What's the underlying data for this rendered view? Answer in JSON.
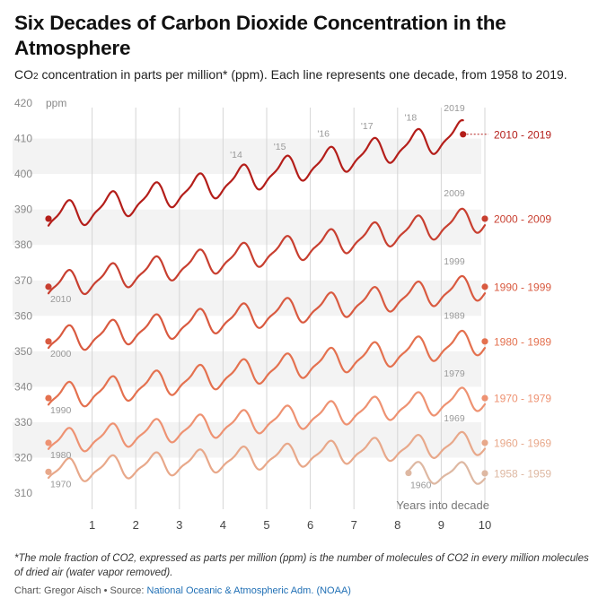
{
  "header": {
    "title": "Six Decades of Carbon Dioxide Concentration in the Atmosphere",
    "subtitle_pre": "CO",
    "subtitle_sub": "2",
    "subtitle_post": " concentration in parts per million* (ppm). Each line represents one decade, from 1958 to 2019."
  },
  "footer": {
    "footnote": "*The mole fraction of CO2, expressed as parts per million (ppm) is the number of molecules of CO2 in every million molecules of dried air (water vapor removed).",
    "credit_prefix": "Chart: Gregor Aisch • Source: ",
    "source_name": "National Oceanic & Atmospheric Adm. (NOAA)"
  },
  "chart_data": {
    "type": "line",
    "xlabel": "Years into decade",
    "ylabel": "ppm",
    "xlim": [
      0,
      10
    ],
    "ylim": [
      308,
      420
    ],
    "xticks": [
      "1",
      "2",
      "3",
      "4",
      "5",
      "6",
      "7",
      "8",
      "9",
      "10"
    ],
    "yticks": [
      "310",
      "320",
      "330",
      "340",
      "350",
      "360",
      "370",
      "380",
      "390",
      "400",
      "410",
      "420"
    ],
    "grid": "horizontal bands and vertical lines",
    "series": [
      {
        "name": "1958 - 1959",
        "start_label": "1960",
        "peak_label": "",
        "color": "#deb8a2",
        "x_start": 8.25,
        "x_end": 10.0,
        "start": 315.7,
        "end": 315.6,
        "amplitude": 2.7
      },
      {
        "name": "1960 - 1969",
        "start_label": "1970",
        "peak_label": "1969",
        "color": "#e8a88a",
        "x_start": 0.0,
        "x_end": 10.0,
        "start": 316.0,
        "end": 324.2,
        "amplitude": 3.0
      },
      {
        "name": "1970 - 1979",
        "start_label": "1980",
        "peak_label": "1979",
        "color": "#ee9272",
        "x_start": 0.0,
        "x_end": 10.0,
        "start": 324.2,
        "end": 336.8,
        "amplitude": 3.1
      },
      {
        "name": "1980 - 1989",
        "start_label": "1990",
        "peak_label": "1989",
        "color": "#e4714f",
        "x_start": 0.0,
        "x_end": 10.0,
        "start": 336.8,
        "end": 352.8,
        "amplitude": 3.3
      },
      {
        "name": "1990 - 1999",
        "start_label": "2000",
        "peak_label": "1999",
        "color": "#d95a40",
        "x_start": 0.0,
        "x_end": 10.0,
        "start": 352.8,
        "end": 368.2,
        "amplitude": 3.3
      },
      {
        "name": "2000 - 2009",
        "start_label": "2010",
        "peak_label": "2009",
        "color": "#c83f30",
        "x_start": 0.0,
        "x_end": 10.0,
        "start": 368.2,
        "end": 387.4,
        "amplitude": 3.3
      },
      {
        "name": "2010 - 2019",
        "start_label": "",
        "peak_label": "2019",
        "color": "#b41e1a",
        "x_start": 0.0,
        "x_end": 9.5,
        "start": 387.4,
        "end": 411.2,
        "amplitude": 3.5
      }
    ],
    "year_annotations": [
      {
        "label": "'14",
        "x": 4.3,
        "y": 401.5
      },
      {
        "label": "'15",
        "x": 5.3,
        "y": 403.8
      },
      {
        "label": "'16",
        "x": 6.3,
        "y": 407.5
      },
      {
        "label": "'17",
        "x": 7.3,
        "y": 409.6
      },
      {
        "label": "'18",
        "x": 8.3,
        "y": 412.0
      }
    ]
  }
}
